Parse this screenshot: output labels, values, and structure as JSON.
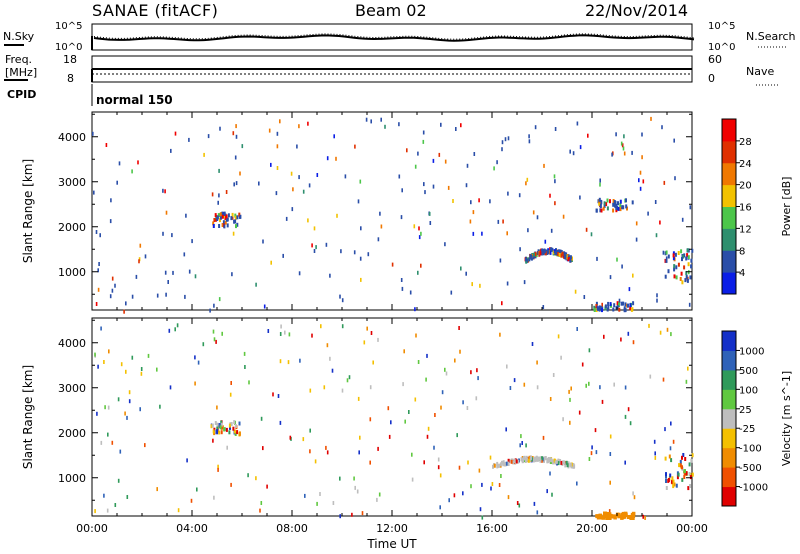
{
  "header": {
    "station": "SANAE (fitACF)",
    "beam": "Beam 02",
    "date": "22/Nov/2014"
  },
  "top_panels": {
    "noise": {
      "left_label": "N.Sky",
      "right_label": "N.Search",
      "left_ticks": [
        "10^5",
        "10^0"
      ],
      "right_ticks": [
        "10^5",
        "10^0"
      ]
    },
    "freq": {
      "left_label_1": "Freq.",
      "left_label_2": "[MHz]",
      "right_label": "Nave",
      "left_ticks": [
        "18",
        "8"
      ],
      "right_ticks": [
        "60",
        "0"
      ]
    },
    "cpid": {
      "label": "CPID",
      "value": "normal 150"
    }
  },
  "chart_data": [
    {
      "type": "heatmap",
      "quantity": "Power",
      "ylabel": "Slant Range [km]",
      "y_ticks": [
        1000,
        2000,
        3000,
        4000
      ],
      "ylim": [
        150,
        4550
      ],
      "colorbar_label": "Power [dB]",
      "colorbar_ticks": [
        "4",
        "8",
        "12",
        "16",
        "20",
        "24",
        "28"
      ],
      "colorbar_colors": [
        "#0a1ee6",
        "#2a4ea8",
        "#2e8f6e",
        "#4cc64a",
        "#f2c200",
        "#f07800",
        "#e03000",
        "#f00000"
      ],
      "xlabel": "",
      "x_ticks": [
        "00:00",
        "04:00",
        "08:00",
        "12:00",
        "16:00",
        "20:00",
        "00:00"
      ],
      "xlim_hours": [
        0,
        24
      ],
      "scatter_regions": [
        {
          "t": [
            17.3,
            19.2
          ],
          "r": [
            1250,
            1550
          ],
          "note": "band"
        },
        {
          "t": [
            4.7,
            5.9
          ],
          "r": [
            2050,
            2350
          ]
        },
        {
          "t": [
            22.9,
            24.0
          ],
          "r": [
            800,
            1600
          ]
        },
        {
          "t": [
            20.0,
            21.7
          ],
          "r": [
            180,
            350
          ]
        },
        {
          "t": [
            20.0,
            21.6
          ],
          "r": [
            2400,
            2650
          ]
        }
      ]
    },
    {
      "type": "heatmap",
      "quantity": "Velocity",
      "ylabel": "Slant Range [km]",
      "y_ticks": [
        1000,
        2000,
        3000,
        4000
      ],
      "ylim": [
        150,
        4550
      ],
      "colorbar_label": "Velocity [m s^-1]",
      "colorbar_ticks": [
        "1000",
        "500",
        "100",
        "25",
        "-25",
        "-100",
        "-500",
        "-1000"
      ],
      "colorbar_colors": [
        "#1430c8",
        "#2f62b8",
        "#2f9a5a",
        "#60c840",
        "#bebebe",
        "#f4c000",
        "#f08c00",
        "#f05000",
        "#e00000"
      ],
      "xlabel": "Time UT",
      "x_ticks": [
        "00:00",
        "04:00",
        "08:00",
        "12:00",
        "16:00",
        "20:00",
        "00:00"
      ],
      "xlim_hours": [
        0,
        24
      ],
      "scatter_regions": [
        {
          "t": [
            16.0,
            19.3
          ],
          "r": [
            1250,
            1500
          ],
          "note": "ground scatter"
        },
        {
          "t": [
            4.7,
            5.9
          ],
          "r": [
            2000,
            2300
          ]
        },
        {
          "t": [
            22.9,
            24.0
          ],
          "r": [
            800,
            1600
          ]
        },
        {
          "t": [
            20.1,
            21.6
          ],
          "r": [
            150,
            250
          ],
          "note": "orange patch"
        }
      ]
    }
  ]
}
